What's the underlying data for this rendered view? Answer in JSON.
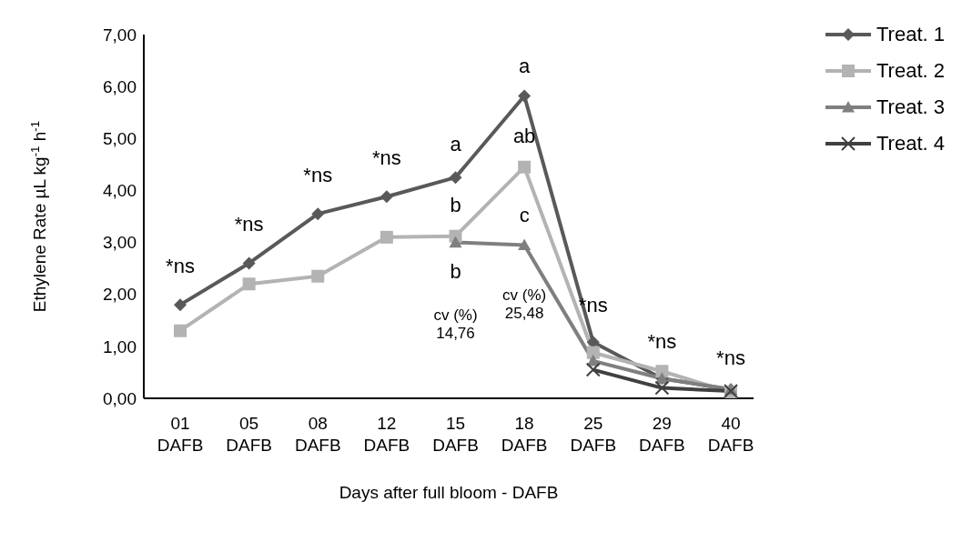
{
  "chart_data": {
    "type": "line",
    "xlabel": "Days after full bloom - DAFB",
    "ylabel": "Ethylene Rate µL kg$^{-1}$ h$^{-1}$",
    "categories": [
      "01 DAFB",
      "05 DAFB",
      "08 DAFB",
      "12 DAFB",
      "15 DAFB",
      "18 DAFB",
      "25 DAFB",
      "29 DAFB",
      "40 DAFB"
    ],
    "series": [
      {
        "name": "Treat. 1",
        "color": "#595959",
        "marker": "diamond",
        "values": [
          1.8,
          2.6,
          3.55,
          3.88,
          4.25,
          5.82,
          1.08,
          0.38,
          0.17
        ]
      },
      {
        "name": "Treat. 2",
        "color": "#b3b3b3",
        "marker": "square",
        "values": [
          1.3,
          2.2,
          2.35,
          3.1,
          3.12,
          4.45,
          0.88,
          0.52,
          0.12
        ]
      },
      {
        "name": "Treat. 3",
        "color": "#7f7f7f",
        "marker": "triangle",
        "values": [
          null,
          null,
          null,
          null,
          3.0,
          2.95,
          0.72,
          0.38,
          0.17
        ]
      },
      {
        "name": "Treat. 4",
        "color": "#404040",
        "marker": "cross",
        "values": [
          null,
          null,
          null,
          null,
          null,
          null,
          0.55,
          0.2,
          0.14
        ]
      }
    ],
    "ylim": [
      0,
      7
    ],
    "yticks": [
      {
        "value": 0,
        "label": "0,00"
      },
      {
        "value": 1,
        "label": "1,00"
      },
      {
        "value": 2,
        "label": "2,00"
      },
      {
        "value": 3,
        "label": "3,00"
      },
      {
        "value": 4,
        "label": "4,00"
      },
      {
        "value": 5,
        "label": "5,00"
      },
      {
        "value": 6,
        "label": "6,00"
      },
      {
        "value": 7,
        "label": "7,00"
      }
    ],
    "grid": false,
    "legend": "top right",
    "line_style": "solid",
    "annotations": [
      "*ns",
      "*ns",
      "*ns",
      "*ns",
      "a",
      "b",
      "b",
      "cv (%)\n14,76",
      "a",
      "ab",
      "c",
      "cv (%)\n25,48",
      "*ns",
      "*ns",
      "*ns"
    ]
  }
}
